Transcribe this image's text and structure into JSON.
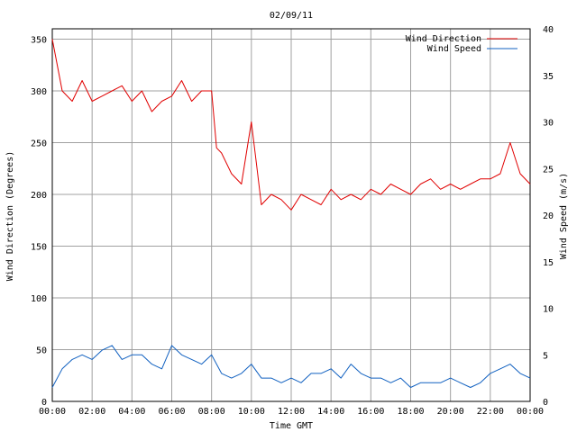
{
  "chart_data": {
    "type": "line",
    "title": "02/09/11",
    "xlabel": "Time GMT",
    "ylabel_left": "Wind Direction (Degrees)",
    "ylabel_right": "Wind Speed (m/s)",
    "x_ticks": [
      "00:00",
      "02:00",
      "04:00",
      "06:00",
      "08:00",
      "10:00",
      "12:00",
      "14:00",
      "16:00",
      "18:00",
      "20:00",
      "22:00",
      "00:00"
    ],
    "x_range_hours": [
      0,
      24
    ],
    "ylim_left": [
      0,
      360
    ],
    "y_ticks_left": [
      0,
      50,
      100,
      150,
      200,
      250,
      300,
      350
    ],
    "ylim_right": [
      0,
      40
    ],
    "y_ticks_right": [
      0,
      5,
      10,
      15,
      20,
      25,
      30,
      35,
      40
    ],
    "grid": true,
    "legend_position": "top-right",
    "series": [
      {
        "name": "Wind Direction",
        "axis": "left",
        "color": "#e00000",
        "x": [
          0,
          0.5,
          1,
          1.5,
          2,
          2.5,
          3,
          3.5,
          4,
          4.5,
          5,
          5.5,
          6,
          6.5,
          7,
          7.5,
          8,
          8.25,
          8.5,
          9,
          9.5,
          10,
          10.25,
          10.5,
          11,
          11.5,
          12,
          12.5,
          13,
          13.5,
          14,
          14.5,
          15,
          15.5,
          16,
          16.5,
          17,
          17.5,
          18,
          18.5,
          19,
          19.5,
          20,
          20.5,
          21,
          21.5,
          22,
          22.5,
          23,
          23.5,
          24
        ],
        "values": [
          350,
          300,
          290,
          310,
          290,
          295,
          300,
          305,
          290,
          300,
          280,
          290,
          295,
          310,
          290,
          300,
          300,
          245,
          240,
          220,
          210,
          270,
          230,
          190,
          200,
          195,
          185,
          200,
          195,
          190,
          205,
          195,
          200,
          195,
          205,
          200,
          210,
          205,
          200,
          210,
          215,
          205,
          210,
          205,
          210,
          215,
          215,
          220,
          250,
          220,
          210
        ]
      },
      {
        "name": "Wind Speed",
        "axis": "right",
        "color": "#1060c0",
        "x": [
          0,
          0.5,
          1,
          1.5,
          2,
          2.5,
          3,
          3.5,
          4,
          4.5,
          5,
          5.5,
          6,
          6.5,
          7,
          7.5,
          8,
          8.5,
          9,
          9.5,
          10,
          10.5,
          11,
          11.5,
          12,
          12.5,
          13,
          13.5,
          14,
          14.5,
          15,
          15.5,
          16,
          16.5,
          17,
          17.5,
          18,
          18.5,
          19,
          19.5,
          20,
          20.5,
          21,
          21.5,
          22,
          22.5,
          23,
          23.5,
          24
        ],
        "values": [
          1.5,
          3.5,
          4.5,
          5,
          4.5,
          5.5,
          6,
          4.5,
          5,
          5,
          4,
          3.5,
          6,
          5,
          4.5,
          4,
          5,
          3,
          2.5,
          3,
          4,
          2.5,
          2.5,
          2,
          2.5,
          2,
          3,
          3,
          3.5,
          2.5,
          4,
          3,
          2.5,
          2.5,
          2,
          2.5,
          1.5,
          2,
          2,
          2,
          2.5,
          2,
          1.5,
          2,
          3,
          3.5,
          4,
          3,
          2.5
        ]
      }
    ]
  }
}
